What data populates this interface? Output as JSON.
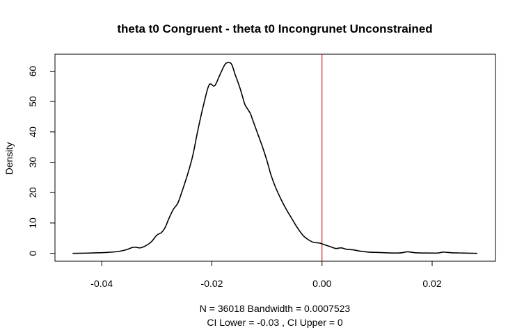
{
  "chart_data": {
    "type": "line",
    "title": "theta t0 Congruent - theta t0 Incongrunet Unconstrained",
    "xlabel_lines": [
      "N = 36018   Bandwidth = 0.0007523",
      "CI Lower =  -0.03 , CI Upper =  0"
    ],
    "ylabel": "Density",
    "xlim": [
      -0.0485,
      0.0315
    ],
    "ylim": [
      -2.6,
      65.6
    ],
    "x_ticks": [
      -0.04,
      -0.02,
      0.0,
      0.02
    ],
    "x_tick_labels": [
      "-0.04",
      "-0.02",
      "0.00",
      "0.02"
    ],
    "y_ticks": [
      0,
      10,
      20,
      30,
      40,
      50,
      60
    ],
    "y_tick_labels": [
      "0",
      "10",
      "20",
      "30",
      "40",
      "50",
      "60"
    ],
    "vline": {
      "x": 0.0,
      "color": "#cc0000"
    },
    "line_color": "#000000",
    "grid": false,
    "series": [
      {
        "x": [
          -0.0453,
          -0.042,
          -0.039,
          -0.037,
          -0.0355,
          -0.0345,
          -0.0338,
          -0.033,
          -0.032,
          -0.031,
          -0.03,
          -0.0292,
          -0.0285,
          -0.0278,
          -0.027,
          -0.0262,
          -0.0255,
          -0.0245,
          -0.0235,
          -0.0225,
          -0.0215,
          -0.0205,
          -0.0195,
          -0.0185,
          -0.0175,
          -0.0165,
          -0.0158,
          -0.015,
          -0.0145,
          -0.014,
          -0.0135,
          -0.013,
          -0.0127,
          -0.0122,
          -0.0115,
          -0.0108,
          -0.01,
          -0.0093,
          -0.0085,
          -0.0075,
          -0.0065,
          -0.0055,
          -0.0045,
          -0.0035,
          -0.0025,
          -0.0015,
          -0.0005,
          0.0005,
          0.0015,
          0.0025,
          0.0035,
          0.0045,
          0.0055,
          0.007,
          0.0085,
          0.01,
          0.0115,
          0.013,
          0.0145,
          0.0155,
          0.017,
          0.019,
          0.021,
          0.022,
          0.0235,
          0.0255,
          0.0282
        ],
        "y": [
          0.0,
          0.1,
          0.3,
          0.6,
          1.2,
          1.9,
          2.0,
          1.8,
          2.5,
          3.8,
          6.0,
          6.8,
          8.5,
          11.5,
          14.5,
          16.5,
          20.0,
          25.5,
          32.0,
          41.0,
          49.0,
          55.5,
          55.2,
          59.0,
          62.5,
          62.5,
          59.0,
          55.0,
          52.0,
          49.0,
          47.5,
          46.0,
          44.5,
          42.0,
          38.5,
          35.0,
          30.5,
          26.0,
          22.0,
          18.0,
          14.5,
          11.5,
          8.5,
          6.0,
          4.5,
          3.6,
          3.4,
          2.8,
          2.2,
          1.6,
          1.8,
          1.3,
          1.2,
          0.7,
          0.4,
          0.3,
          0.2,
          0.1,
          0.2,
          0.5,
          0.2,
          0.1,
          0.1,
          0.4,
          0.2,
          0.1,
          0.0
        ]
      }
    ]
  }
}
